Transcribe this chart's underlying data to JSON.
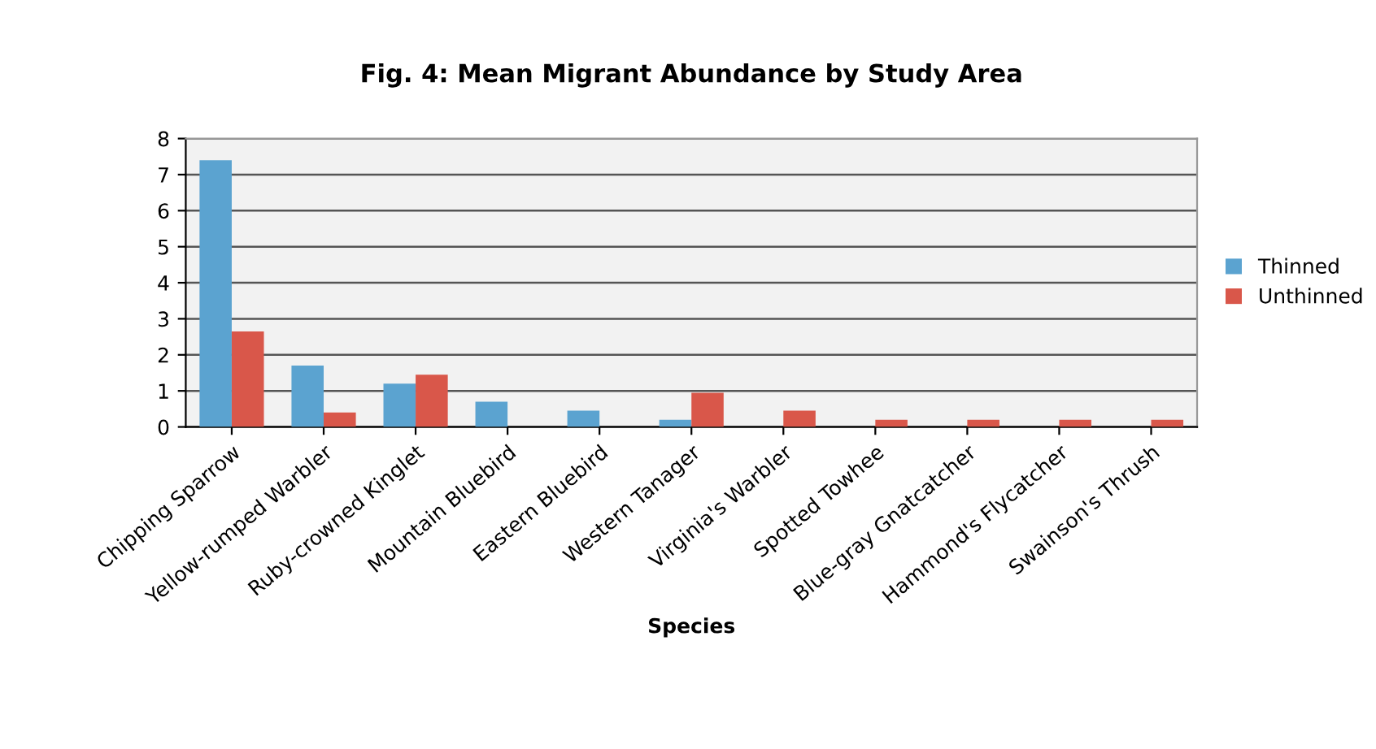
{
  "chart_data": {
    "type": "bar",
    "title": "Fig. 4: Mean Migrant Abundance by Study Area",
    "xlabel": "Species",
    "categories": [
      "Chipping Sparrow",
      "Yellow-rumped Warbler",
      "Ruby-crowned Kinglet",
      "Mountain Bluebird",
      "Eastern Bluebird",
      "Western Tanager",
      "Virginia's Warbler",
      "Spotted Towhee",
      "Blue-gray Gnatcatcher",
      "Hammond's Flycatcher",
      "Swainson's Thrush"
    ],
    "series": [
      {
        "name": "Thinned",
        "color": "#5ba3d0",
        "values": [
          7.4,
          1.7,
          1.2,
          0.7,
          0.45,
          0.2,
          0,
          0,
          0,
          0,
          0
        ]
      },
      {
        "name": "Unthinned",
        "color": "#d9574a",
        "values": [
          2.65,
          0.4,
          1.45,
          0,
          0,
          0.95,
          0.45,
          0.2,
          0.2,
          0.2,
          0.2
        ]
      }
    ],
    "ylim": [
      0,
      8
    ],
    "yticks": [
      0,
      1,
      2,
      3,
      4,
      5,
      6,
      7,
      8
    ],
    "grid": "y",
    "legend": "right"
  }
}
